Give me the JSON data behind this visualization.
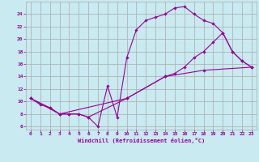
{
  "xlabel": "Windchill (Refroidissement éolien,°C)",
  "bg_color": "#c8eaf0",
  "line_color": "#990099",
  "grid_color": "#aaaaaa",
  "xlim": [
    -0.5,
    23.5
  ],
  "ylim": [
    5.5,
    26.0
  ],
  "xticks": [
    0,
    1,
    2,
    3,
    4,
    5,
    6,
    7,
    8,
    9,
    10,
    11,
    12,
    13,
    14,
    15,
    16,
    17,
    18,
    19,
    20,
    21,
    22,
    23
  ],
  "yticks": [
    6,
    8,
    10,
    12,
    14,
    16,
    18,
    20,
    22,
    24
  ],
  "line1_x": [
    0,
    1,
    2,
    3,
    4,
    5,
    6,
    7,
    8,
    9,
    10,
    11,
    12,
    13,
    14,
    15,
    16,
    17,
    18,
    19,
    20,
    21,
    22,
    23
  ],
  "line1_y": [
    10.5,
    9.5,
    9.0,
    8.0,
    8.0,
    8.0,
    7.5,
    6.0,
    12.5,
    7.5,
    17.0,
    21.5,
    23.0,
    23.5,
    24.0,
    25.0,
    25.2,
    24.0,
    23.0,
    22.5,
    21.0,
    18.0,
    16.5,
    15.5
  ],
  "line2_x": [
    0,
    2,
    3,
    4,
    5,
    6,
    10,
    14,
    15,
    16,
    17,
    18,
    19,
    20,
    21,
    22,
    23
  ],
  "line2_y": [
    10.5,
    9.0,
    8.0,
    8.0,
    8.0,
    7.5,
    10.5,
    14.0,
    14.5,
    15.5,
    17.0,
    18.0,
    19.5,
    21.0,
    18.0,
    16.5,
    15.5
  ],
  "line3_x": [
    0,
    3,
    10,
    14,
    18,
    23
  ],
  "line3_y": [
    10.5,
    8.0,
    10.5,
    14.0,
    15.0,
    15.5
  ]
}
